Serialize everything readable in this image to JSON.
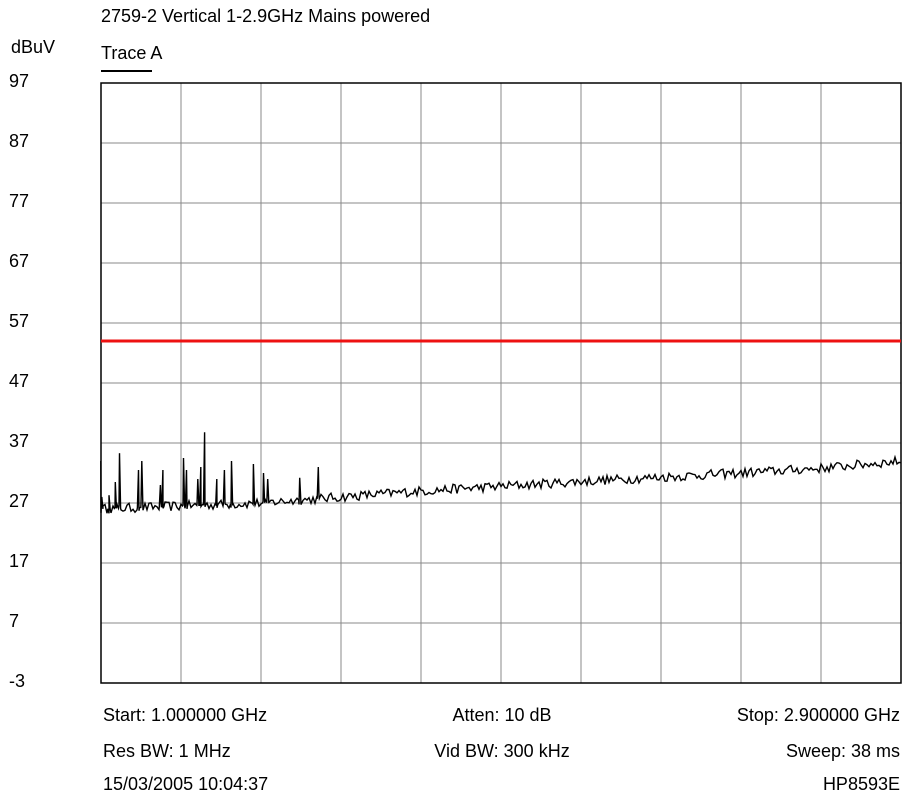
{
  "header": {
    "title": "2759-2 Vertical 1-2.9GHz Mains powered",
    "y_unit": "dBuV",
    "trace_label": "Trace A"
  },
  "footer": {
    "start": "Start: 1.000000 GHz",
    "atten": "Atten: 10 dB",
    "stop": "Stop: 2.900000 GHz",
    "res_bw": "Res BW: 1 MHz",
    "vid_bw": "Vid BW: 300 kHz",
    "sweep": "Sweep: 38 ms",
    "timestamp": "15/03/2005 10:04:37",
    "instrument": "HP8593E"
  },
  "colors": {
    "trace": "#000000",
    "limit": "#ee1111",
    "grid": "#888888",
    "frame": "#000000"
  },
  "chart_data": {
    "type": "line",
    "title": "2759-2 Vertical 1-2.9GHz Mains powered",
    "xlabel": "",
    "ylabel": "dBuV",
    "xlim": [
      1.0,
      2.9
    ],
    "ylim": [
      -3,
      97
    ],
    "yticks": [
      "97",
      "87",
      "77",
      "67",
      "57",
      "47",
      "37",
      "27",
      "17",
      "7",
      "-3"
    ],
    "x_divisions": 10,
    "grid": true,
    "limit_line": {
      "value": 54
    },
    "series": [
      {
        "name": "Trace A",
        "baseline": [
          [
            1.0,
            26.0
          ],
          [
            1.19,
            26.5
          ],
          [
            1.38,
            27.0
          ],
          [
            1.57,
            28.0
          ],
          [
            1.76,
            29.0
          ],
          [
            1.95,
            29.8
          ],
          [
            2.14,
            30.6
          ],
          [
            2.33,
            31.3
          ],
          [
            2.52,
            32.0
          ],
          [
            2.71,
            32.8
          ],
          [
            2.9,
            34.0
          ]
        ],
        "peaks": [
          [
            1.002,
            28.0
          ],
          [
            1.019,
            28.3
          ],
          [
            1.034,
            30.5
          ],
          [
            1.044,
            35.3
          ],
          [
            1.089,
            32.5
          ],
          [
            1.097,
            34.0
          ],
          [
            1.141,
            30.0
          ],
          [
            1.147,
            32.5
          ],
          [
            1.196,
            34.5
          ],
          [
            1.203,
            32.5
          ],
          [
            1.23,
            31.0
          ],
          [
            1.237,
            33.0
          ],
          [
            1.246,
            38.8
          ],
          [
            1.275,
            31.0
          ],
          [
            1.293,
            32.5
          ],
          [
            1.31,
            34.0
          ],
          [
            1.362,
            33.5
          ],
          [
            1.386,
            32.0
          ],
          [
            1.396,
            31.0
          ],
          [
            1.472,
            31.2
          ],
          [
            1.516,
            33.0
          ]
        ]
      }
    ]
  }
}
